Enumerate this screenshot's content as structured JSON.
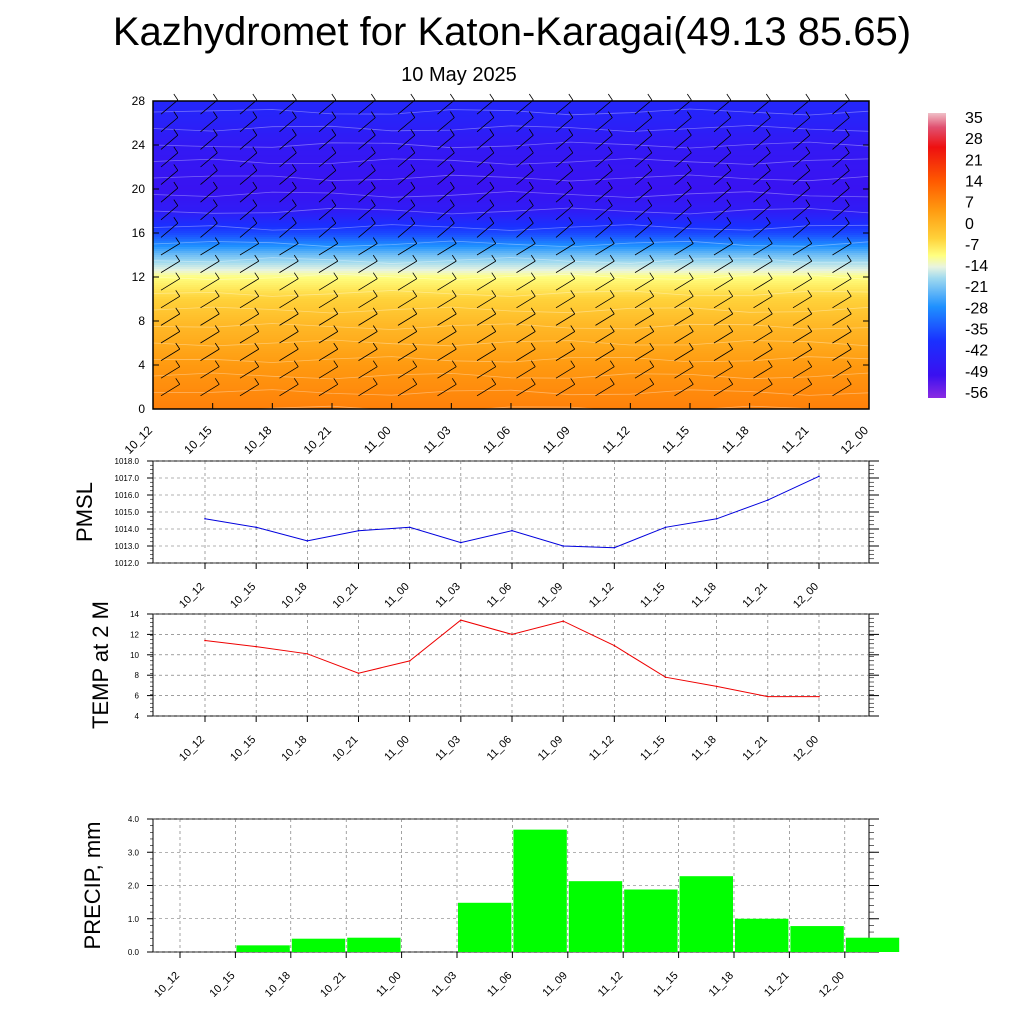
{
  "title": "Kazhydromet for Katon-Karagai(49.13 85.65)",
  "subtitle": "10 May 2025",
  "chart_data": [
    {
      "type": "heatmap",
      "description_key": "temperature cross-section with wind barbs",
      "x": [
        "10_12",
        "10_15",
        "10_18",
        "10_21",
        "11_00",
        "11_03",
        "11_06",
        "11_09",
        "11_12",
        "11_15",
        "11_18",
        "11_21",
        "12_00"
      ],
      "y_ticks": [
        0,
        4,
        8,
        12,
        16,
        20,
        24,
        28
      ],
      "ylim": [
        0,
        28
      ],
      "levels_y": [
        0,
        2,
        4,
        6,
        8,
        10,
        12,
        14,
        16,
        18,
        20,
        22,
        24,
        26,
        28
      ],
      "values_by_level": [
        9,
        7,
        5,
        2,
        -1,
        -5,
        -12,
        -25,
        -42,
        -52,
        -55,
        -54,
        -53,
        -50,
        -48
      ],
      "colorbar": {
        "labels": [
          "35",
          "28",
          "21",
          "14",
          "7",
          "0",
          "-7",
          "-14",
          "-21",
          "-28",
          "-35",
          "-42",
          "-49",
          "-56"
        ],
        "range": [
          -63,
          42
        ]
      }
    },
    {
      "type": "line",
      "ylabel": "PMSL",
      "x": [
        "10_12",
        "10_15",
        "10_18",
        "10_21",
        "11_00",
        "11_03",
        "11_06",
        "11_09",
        "11_12",
        "11_15",
        "11_18",
        "11_21",
        "12_00"
      ],
      "values": [
        1014.6,
        1014.1,
        1013.3,
        1013.9,
        1014.1,
        1013.2,
        1013.9,
        1013.0,
        1012.9,
        1014.1,
        1014.6,
        1015.7,
        1017.1
      ],
      "y_ticks": [
        "1012.0",
        "1013.0",
        "1014.0",
        "1015.0",
        "1016.0",
        "1017.0",
        "1018.0"
      ],
      "ylim": [
        1012,
        1018
      ],
      "color": "#0000dd"
    },
    {
      "type": "line",
      "ylabel": "TEMP at 2 M",
      "x": [
        "10_12",
        "10_15",
        "10_18",
        "10_21",
        "11_00",
        "11_03",
        "11_06",
        "11_09",
        "11_12",
        "11_15",
        "11_18",
        "11_21",
        "12_00"
      ],
      "values": [
        11.4,
        10.8,
        10.1,
        8.2,
        9.4,
        13.4,
        12.0,
        13.3,
        10.9,
        7.8,
        6.9,
        5.9,
        5.9
      ],
      "y_ticks": [
        "4",
        "6",
        "8",
        "10",
        "12",
        "14"
      ],
      "ylim": [
        4,
        14
      ],
      "color": "#ee0000"
    },
    {
      "type": "bar",
      "ylabel": "PRECIP, mm",
      "categories": [
        "10_12",
        "10_15",
        "10_18",
        "10_21",
        "11_00",
        "11_03",
        "11_06",
        "11_09",
        "11_12",
        "11_15",
        "11_18",
        "11_21",
        "12_00"
      ],
      "values": [
        0,
        0.2,
        0.4,
        0.43,
        0,
        1.48,
        3.68,
        2.13,
        1.88,
        2.28,
        1.0,
        0.78,
        0.43
      ],
      "y_ticks": [
        "0.0",
        "1.0",
        "2.0",
        "3.0",
        "4.0"
      ],
      "ylim": [
        0,
        4
      ],
      "color": "#00ff00"
    }
  ]
}
